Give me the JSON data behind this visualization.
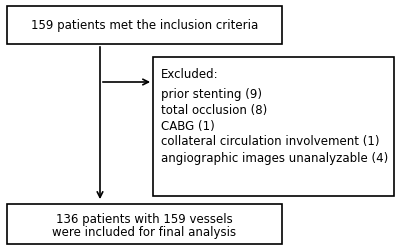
{
  "bg_color": "#ffffff",
  "box1_text": "159 patients met the inclusion criteria",
  "box2_title": "Excluded:",
  "box2_lines": [
    "prior stenting (9)",
    "total occlusion (8)",
    "CABG (1)",
    "collateral circulation involvement (1)",
    "angiographic images unanalyzable (4)"
  ],
  "box3_line1": "136 patients with 159 vessels",
  "box3_line2": "were included for final analysis",
  "box_edge_color": "#000000",
  "text_color": "#000000",
  "arrow_color": "#000000",
  "fontsize": 8.5,
  "lw": 1.2
}
